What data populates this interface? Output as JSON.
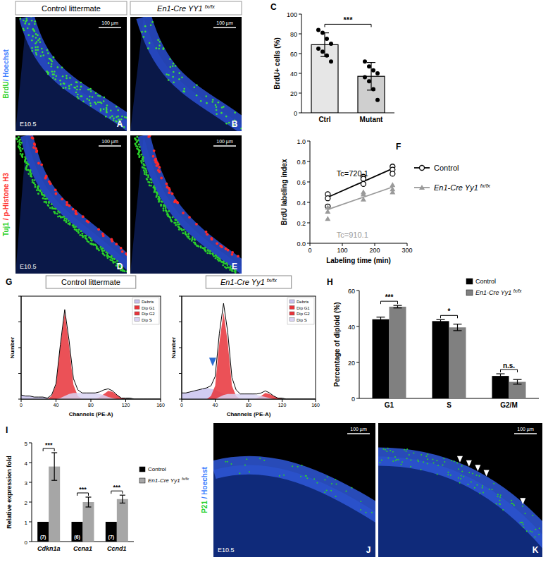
{
  "figure": {
    "panel_letters": [
      "A",
      "B",
      "C",
      "D",
      "E",
      "F",
      "G",
      "H",
      "I",
      "J",
      "K"
    ],
    "column_headers": [
      "Control littermate",
      "En1-Cre YY1 fx/fx"
    ],
    "stains": [
      [
        {
          "text": "BrdU",
          "color": "#2bd12b"
        },
        {
          "text": "/ Hoechst",
          "color": "#3f7fff"
        }
      ],
      [
        {
          "text": "Tuj1",
          "color": "#2bd12b"
        },
        {
          "text": " / p-Histone H3",
          "color": "#ff3030"
        }
      ],
      [
        {
          "text": "P21",
          "color": "#2bd12b"
        },
        {
          "text": " / Hoechst",
          "color": "#3f7fff"
        }
      ]
    ],
    "stage": "E10.5",
    "scale_bar": "100 µm"
  },
  "chart_data": [
    {
      "type": "bar",
      "categories": [
        "Ctrl",
        "Mutant"
      ],
      "values": [
        69,
        37
      ],
      "errors": [
        12,
        14
      ],
      "points": [
        [
          84,
          81,
          75,
          70,
          65,
          62,
          58,
          52
        ],
        [
          52,
          47,
          43,
          40,
          36,
          32,
          24,
          13
        ]
      ],
      "colors": [
        "#e6e6e6",
        "#cfcfcf"
      ],
      "ylabel": "BrdU+ cells (%)",
      "ylim": [
        0,
        100
      ],
      "yticks": [
        0,
        20,
        40,
        60,
        80,
        100
      ],
      "significance": [
        "***"
      ]
    },
    {
      "type": "scatter",
      "xlabel": "Labeling time (min)",
      "ylabel": "BrdU labeling index",
      "xlim": [
        0,
        300
      ],
      "xticks": [
        0,
        100,
        200,
        300
      ],
      "ylim": [
        0,
        1.0
      ],
      "yticks": [
        {
          "value": 0,
          "label": "0.0"
        },
        0.2,
        0.4,
        0.6,
        0.8,
        {
          "value": 1,
          "label": "1.0"
        }
      ],
      "legend": "right",
      "series": [
        {
          "name": "Control",
          "color": "#000000",
          "marker": "circle-open",
          "x": [
            55,
            55,
            55,
            165,
            165,
            165,
            255,
            255,
            255
          ],
          "values": [
            0.48,
            0.44,
            0.36,
            0.65,
            0.63,
            0.58,
            0.75,
            0.72,
            0.68
          ],
          "fit_x": [
            55,
            255
          ],
          "fit": [
            0.45,
            0.73
          ],
          "annotation": "Tc=720.1"
        },
        {
          "name": "En1-Cre Yy1 fx/fx",
          "color": "#9a9a9a",
          "marker": "triangle",
          "x": [
            55,
            55,
            55,
            165,
            165,
            165,
            255,
            255,
            255
          ],
          "values": [
            0.35,
            0.31,
            0.24,
            0.5,
            0.48,
            0.43,
            0.57,
            0.53,
            0.5
          ],
          "fit_x": [
            55,
            255
          ],
          "fit": [
            0.33,
            0.55
          ],
          "annotation": "Tc=910.1"
        }
      ]
    },
    {
      "type": "area",
      "title": "Control littermate",
      "xlabel": "Channels (PE-A)",
      "ylabel": "Number",
      "x": [
        0,
        5,
        10,
        15,
        20,
        25,
        30,
        35,
        40,
        45,
        50,
        55,
        60,
        65,
        70,
        75,
        80,
        85,
        90,
        95,
        100,
        105,
        110,
        115,
        120,
        125,
        130,
        135,
        140,
        145,
        150,
        155,
        160
      ],
      "xlim": [
        0,
        160
      ],
      "xticks": [
        0,
        40,
        80,
        120,
        160
      ],
      "ylim": [
        0,
        100
      ],
      "yticks": [
        0,
        25,
        50,
        75,
        100
      ],
      "tick_labels": "x",
      "legend": "top-right",
      "series": [
        {
          "name": "Debris",
          "color": "#c9c3ee",
          "values": [
            4,
            3,
            3,
            2,
            2,
            2,
            1,
            1,
            1,
            0,
            0,
            0,
            0,
            0,
            0,
            0,
            0,
            0,
            0,
            0,
            0,
            0,
            0,
            0,
            0,
            0,
            0,
            0,
            0,
            0,
            0,
            0,
            0
          ]
        },
        {
          "name": "Dip G1",
          "color": "#e8333a",
          "values": [
            0,
            0,
            0,
            0,
            0,
            0,
            0,
            3,
            14,
            52,
            84,
            52,
            14,
            3,
            0,
            0,
            0,
            0,
            0,
            0,
            0,
            0,
            0,
            0,
            0,
            0,
            0,
            0,
            0,
            0,
            0,
            0,
            0
          ]
        },
        {
          "name": "Dip G2",
          "color": "#e8333a",
          "values": [
            0,
            0,
            0,
            0,
            0,
            0,
            0,
            0,
            0,
            0,
            0,
            0,
            0,
            0,
            0,
            0,
            0,
            0,
            2,
            5,
            8,
            7,
            4,
            1,
            0,
            0,
            0,
            0,
            0,
            0,
            0,
            0,
            0
          ]
        },
        {
          "name": "Dip S",
          "color": "#d9d3f3",
          "values": [
            0,
            0,
            0,
            0,
            0,
            0,
            0,
            0,
            0,
            1,
            3,
            5,
            6,
            6,
            6,
            6,
            6,
            6,
            5,
            4,
            2,
            1,
            0,
            0,
            0,
            0,
            0,
            0,
            0,
            0,
            0,
            0,
            0
          ]
        },
        {
          "type": "line",
          "color": "#000000",
          "values": [
            4,
            3,
            3,
            2,
            2,
            2,
            1,
            4,
            15,
            53,
            87,
            57,
            20,
            9,
            6,
            6,
            6,
            6,
            7,
            9,
            10,
            8,
            4,
            1,
            1,
            1,
            0,
            0,
            0,
            0,
            0,
            0,
            0
          ]
        }
      ]
    },
    {
      "type": "area",
      "title": "En1-Cre Yy1 fx/fx",
      "xlabel": "Channels (PE-A)",
      "ylabel": "Number",
      "x": [
        0,
        5,
        10,
        15,
        20,
        25,
        30,
        35,
        40,
        45,
        50,
        55,
        60,
        65,
        70,
        75,
        80,
        85,
        90,
        95,
        100,
        105,
        110,
        115,
        120,
        125,
        130,
        135,
        140,
        145,
        150,
        155,
        160
      ],
      "xlim": [
        0,
        160
      ],
      "xticks": [
        0,
        40,
        80,
        120,
        160
      ],
      "ylim": [
        0,
        100
      ],
      "yticks": [
        0,
        25,
        50,
        75,
        100
      ],
      "tick_labels": "x",
      "legend": "top-right",
      "series": [
        {
          "name": "Debris",
          "color": "#c9c3ee",
          "values": [
            6,
            6,
            7,
            8,
            9,
            10,
            11,
            10,
            9,
            7,
            5,
            3,
            1,
            0,
            0,
            0,
            0,
            0,
            0,
            0,
            0,
            0,
            0,
            0,
            0,
            0,
            0,
            0,
            0,
            0,
            0,
            0,
            0
          ]
        },
        {
          "name": "Dip G1",
          "color": "#e8333a",
          "values": [
            0,
            0,
            0,
            0,
            0,
            0,
            0,
            3,
            13,
            55,
            84,
            55,
            13,
            3,
            0,
            0,
            0,
            0,
            0,
            0,
            0,
            0,
            0,
            0,
            0,
            0,
            0,
            0,
            0,
            0,
            0,
            0,
            0
          ]
        },
        {
          "name": "Dip G2",
          "color": "#e8333a",
          "values": [
            0,
            0,
            0,
            0,
            0,
            0,
            0,
            0,
            0,
            0,
            0,
            0,
            0,
            0,
            0,
            0,
            0,
            0,
            1,
            3,
            6,
            5,
            3,
            1,
            0,
            0,
            0,
            0,
            0,
            0,
            0,
            0,
            0
          ]
        },
        {
          "name": "Dip S",
          "color": "#d9d3f3",
          "values": [
            0,
            0,
            0,
            0,
            0,
            0,
            0,
            0,
            0,
            2,
            4,
            5,
            5,
            5,
            5,
            5,
            5,
            5,
            4,
            3,
            2,
            1,
            0,
            0,
            0,
            0,
            0,
            0,
            0,
            0,
            0,
            0,
            0
          ]
        },
        {
          "type": "line",
          "color": "#000000",
          "values": [
            6,
            6,
            7,
            8,
            9,
            10,
            11,
            13,
            22,
            64,
            93,
            65,
            21,
            9,
            5,
            5,
            5,
            5,
            5,
            6,
            8,
            6,
            3,
            1,
            1,
            0,
            0,
            0,
            0,
            0,
            0,
            0,
            0
          ]
        }
      ]
    },
    {
      "type": "bar",
      "categories": [
        "G1",
        "S",
        "G2/M"
      ],
      "ylabel": "Percentage of diploid (%)",
      "ylim": [
        0,
        60
      ],
      "yticks": [
        0,
        20,
        40,
        60
      ],
      "legend": "top-right",
      "significance": [
        "***",
        "*",
        "n.s."
      ],
      "series": [
        {
          "name": "Control",
          "color": "#000000",
          "values": [
            44,
            43,
            12.5
          ],
          "errors": [
            1.2,
            0.8,
            1.2
          ]
        },
        {
          "name": "En1-Cre Yy1 fx/fx",
          "color": "#808080",
          "values": [
            51,
            39.5,
            9.2
          ],
          "errors": [
            0.7,
            1.8,
            1.3
          ]
        }
      ]
    },
    {
      "type": "bar",
      "categories": [
        "Cdkn1a",
        "Ccna1",
        "Ccnd1"
      ],
      "ylabel": "Relative expression fold",
      "ylim": [
        0,
        5
      ],
      "yticks": [
        0,
        1,
        2,
        3,
        4,
        5
      ],
      "legend": "right",
      "significance": [
        "***",
        "***",
        "***"
      ],
      "series": [
        {
          "name": "Control",
          "color": "#000000",
          "values": [
            1,
            1,
            1
          ],
          "n_labels": [
            "(7)",
            "(6)",
            "(7)"
          ]
        },
        {
          "name": "En1-Cre Yy1 fx/fx",
          "color": "#a6a6a6",
          "values": [
            3.8,
            2.0,
            2.15
          ],
          "errors": [
            0.7,
            0.25,
            0.2
          ]
        }
      ]
    }
  ]
}
